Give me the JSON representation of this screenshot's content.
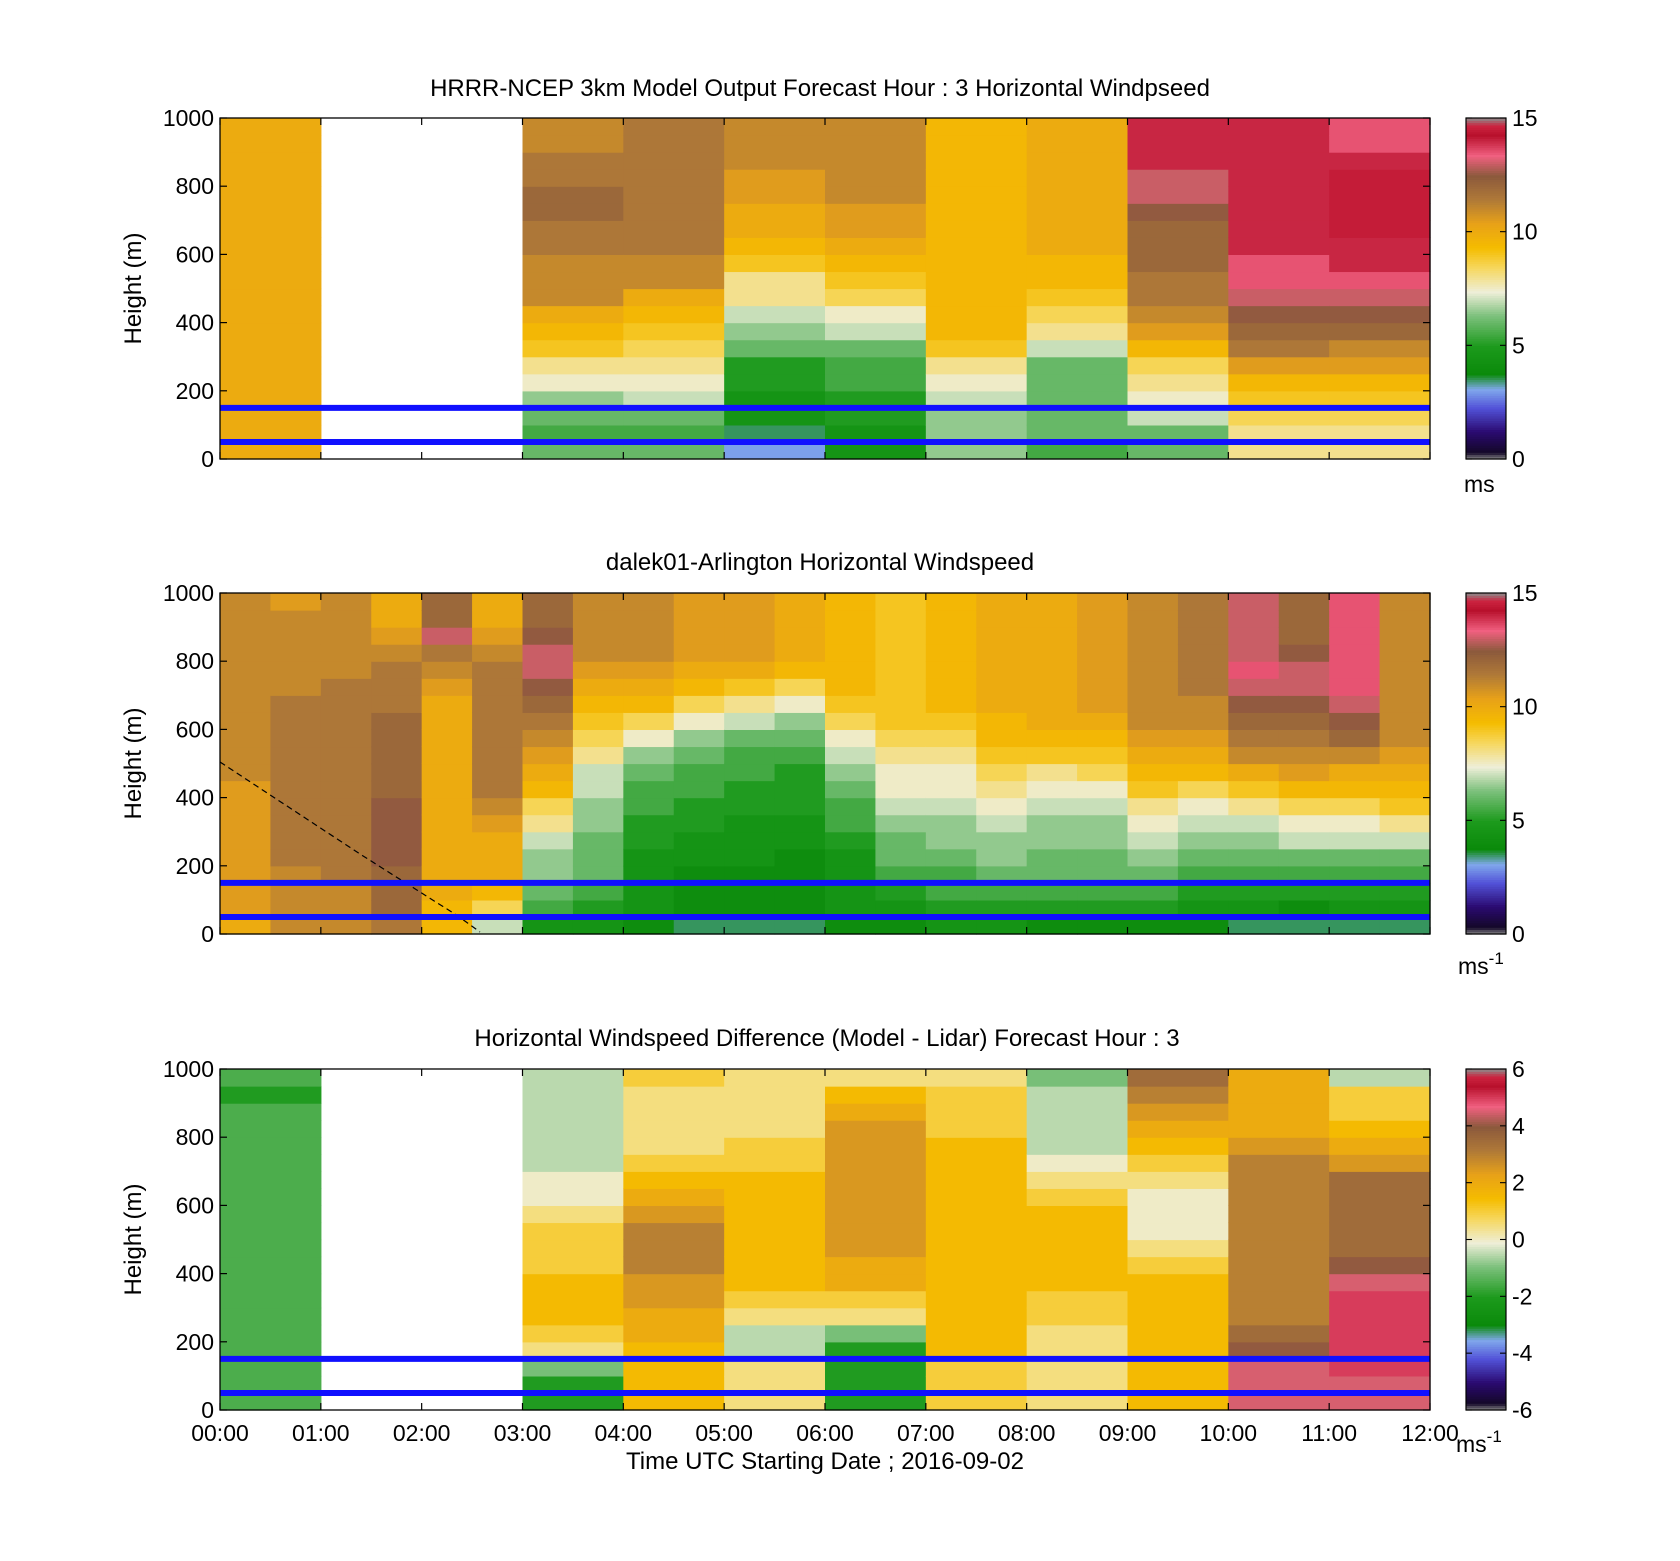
{
  "chart_data": [
    {
      "type": "heatmap",
      "title": "HRRR-NCEP 3km Model Output   Forecast Hour : 3 Horizontal Windpseed",
      "ylabel": "Height (m)",
      "ylim": [
        0,
        1000
      ],
      "yticks": [
        "0",
        "200",
        "400",
        "600",
        "800",
        "1000"
      ],
      "colorbar": {
        "ticks": [
          "0",
          "5",
          "10",
          "15"
        ],
        "unit": "ms",
        "unit_sup": "",
        "range": [
          0,
          15
        ]
      },
      "x_columns": [
        "00:00",
        "01:00",
        "02:00",
        "03:00",
        "04:00",
        "05:00",
        "06:00",
        "07:00",
        "08:00",
        "09:00",
        "10:00",
        "11:00"
      ],
      "heights": [
        25,
        75,
        125,
        175,
        225,
        275,
        325,
        375,
        425,
        475,
        525,
        575,
        625,
        675,
        725,
        775,
        825,
        875,
        925,
        975
      ],
      "values": [
        [
          10,
          10,
          10,
          10,
          10,
          10,
          10,
          10,
          10,
          10,
          10,
          10,
          10,
          10,
          10,
          10,
          10,
          10,
          10,
          10
        ],
        null,
        null,
        [
          6,
          5.5,
          6,
          6.5,
          7.5,
          8,
          9,
          9.5,
          10,
          11,
          11,
          11,
          11.5,
          11.5,
          12,
          12,
          11.5,
          11.5,
          11,
          11
        ],
        [
          6,
          5.5,
          6,
          7,
          7.5,
          8,
          8.5,
          9,
          9.5,
          10,
          11,
          11,
          11.5,
          11.5,
          11.5,
          11.5,
          11.5,
          11.5,
          11.5,
          11.5
        ],
        [
          3,
          3.5,
          4.5,
          4.5,
          5,
          5,
          6,
          6.5,
          7,
          8,
          8,
          9,
          9.5,
          10,
          10,
          10.5,
          10.5,
          11,
          11,
          11
        ],
        [
          4.5,
          4.5,
          5,
          5,
          5.5,
          5.5,
          6,
          7,
          7.5,
          8.5,
          9,
          9.5,
          10,
          10.5,
          10.5,
          11,
          11,
          11,
          11,
          11
        ],
        [
          6.5,
          6.5,
          6.5,
          7,
          7.5,
          8,
          9,
          9.5,
          9.5,
          9.5,
          9.5,
          9.5,
          9.5,
          9.5,
          9.5,
          9.5,
          9.5,
          9.5,
          9.5,
          9.5
        ],
        [
          5.5,
          6,
          6,
          6,
          6,
          6,
          7,
          8,
          8.5,
          9,
          9.5,
          9.5,
          10,
          10,
          10,
          10,
          10,
          10,
          10,
          10
        ],
        [
          6,
          6,
          7,
          7.5,
          8,
          8.5,
          9.5,
          10.5,
          11,
          11.5,
          11.5,
          12,
          12,
          12,
          12.5,
          13,
          13,
          14,
          14,
          14
        ],
        [
          8,
          8,
          8.5,
          9,
          9.5,
          10.5,
          11.5,
          12,
          12.5,
          13,
          13.5,
          13.5,
          14,
          14,
          14,
          14,
          14,
          14,
          14,
          14
        ],
        [
          8,
          8,
          8.5,
          9,
          9.5,
          10.5,
          11,
          12,
          12.5,
          13,
          13.5,
          14,
          14,
          14.5,
          14.5,
          14.5,
          14.5,
          14,
          13.5,
          13.5
        ]
      ]
    },
    {
      "type": "heatmap",
      "title": "dalek01-Arlington  Horizontal Windspeed",
      "ylabel": "Height (m)",
      "ylim": [
        0,
        1000
      ],
      "yticks": [
        "0",
        "200",
        "400",
        "600",
        "800",
        "1000"
      ],
      "colorbar": {
        "ticks": [
          "0",
          "5",
          "10",
          "15"
        ],
        "unit": "ms",
        "unit_sup": "-1",
        "range": [
          0,
          15
        ]
      },
      "profile_times": [
        0.25,
        0.75,
        1.25,
        1.75,
        2.25,
        2.75,
        3.25,
        3.75,
        4.25,
        4.75,
        5.25,
        5.75,
        6.25,
        6.75,
        7.25,
        7.75,
        8.25,
        8.75,
        9.25,
        9.75,
        10.25,
        10.75,
        11.25,
        11.75
      ],
      "heights": [
        25,
        75,
        125,
        175,
        225,
        275,
        325,
        375,
        425,
        475,
        525,
        575,
        625,
        675,
        725,
        775,
        825,
        875,
        925,
        975
      ],
      "values": [
        [
          10,
          10.5,
          10.5,
          10.5,
          10.5,
          10.5,
          10.5,
          10.5,
          10.5,
          11,
          11,
          11,
          11,
          11,
          11,
          11,
          11,
          11,
          11,
          11
        ],
        [
          11,
          11,
          11,
          11,
          11.5,
          11.5,
          11.5,
          11.5,
          11.5,
          11.5,
          11.5,
          11.5,
          11.5,
          11.5,
          11,
          11,
          11,
          11,
          11,
          10.5
        ],
        [
          11,
          11,
          11,
          11.5,
          11.5,
          11.5,
          11.5,
          11.5,
          11.5,
          11.5,
          11.5,
          11.5,
          11.5,
          11.5,
          11.5,
          11,
          11,
          11,
          11,
          11
        ],
        [
          11.5,
          12,
          12,
          12,
          12.5,
          12.5,
          12.5,
          12.5,
          12,
          12,
          12,
          12,
          12,
          11.5,
          11.5,
          11.5,
          11,
          10.5,
          10,
          10
        ],
        [
          9.5,
          9.5,
          10,
          10,
          10,
          10,
          10,
          10,
          10,
          10,
          10,
          10,
          10,
          10,
          10.5,
          11,
          11.5,
          13,
          12,
          12
        ],
        [
          7,
          8.5,
          9.5,
          10,
          10,
          10,
          10.5,
          11,
          11.5,
          11.5,
          11.5,
          11.5,
          11.5,
          11.5,
          11.5,
          11.5,
          11,
          10.5,
          10,
          10
        ],
        [
          4.5,
          5.5,
          6,
          6.5,
          6.5,
          7,
          8,
          8.5,
          9.5,
          10,
          10.5,
          11,
          11.5,
          12,
          12.5,
          13,
          13,
          12.5,
          12,
          12
        ],
        [
          4.5,
          5,
          5.5,
          6,
          6,
          6,
          6.5,
          6.5,
          7,
          7,
          8,
          8.5,
          9,
          9.5,
          10,
          10.5,
          11,
          11,
          11,
          11
        ],
        [
          4,
          4.5,
          4.5,
          4.5,
          4.5,
          5,
          5,
          5.5,
          5.5,
          6,
          6.5,
          7.5,
          8.5,
          9.5,
          10,
          10.5,
          11,
          11,
          11,
          11
        ],
        [
          3.5,
          4,
          4,
          4,
          4.5,
          4.5,
          5,
          5,
          5.5,
          5.5,
          6,
          6.5,
          7.5,
          8.5,
          9.5,
          10,
          10.5,
          10.5,
          10.5,
          10.5
        ],
        [
          3.5,
          4,
          4,
          4,
          4.5,
          4.5,
          4.5,
          5,
          5,
          5.5,
          5.5,
          6,
          7,
          8,
          9,
          10,
          10.5,
          10.5,
          10.5,
          10.5
        ],
        [
          3.5,
          4,
          4,
          4,
          4,
          4.5,
          4.5,
          5,
          5,
          5,
          5.5,
          6,
          6.5,
          7.5,
          8.5,
          9.5,
          10,
          10,
          10,
          10
        ],
        [
          4,
          4.5,
          4.5,
          4.5,
          4.5,
          5,
          5.5,
          5.5,
          6,
          6.5,
          7,
          7.5,
          8.5,
          9,
          9.5,
          9.5,
          9.5,
          9.5,
          9.5,
          9.5
        ],
        [
          4,
          4.5,
          5,
          5.5,
          6,
          6,
          6.5,
          7,
          7.5,
          7.5,
          8,
          8.5,
          9,
          9,
          9,
          9,
          9,
          9,
          9,
          9
        ],
        [
          4.5,
          5,
          5.5,
          5.5,
          6,
          6.5,
          6.5,
          7,
          7.5,
          7.5,
          8,
          8.5,
          9,
          9.5,
          9.5,
          9.5,
          9.5,
          9.5,
          9.5,
          9.5
        ],
        [
          4.5,
          5,
          5.5,
          6,
          6.5,
          6.5,
          7,
          7.5,
          8,
          8.5,
          9,
          9.5,
          9.5,
          10,
          10,
          10,
          10,
          10,
          10,
          10
        ],
        [
          4,
          5,
          5.5,
          6,
          6,
          6.5,
          6.5,
          7,
          7.5,
          8,
          9,
          9.5,
          10,
          10,
          10,
          10,
          10,
          10,
          10,
          10
        ],
        [
          4,
          5,
          5.5,
          6,
          6,
          6.5,
          6.5,
          7,
          7.5,
          8.5,
          9,
          9.5,
          10,
          10.5,
          10.5,
          10.5,
          10.5,
          10.5,
          10.5,
          10.5
        ],
        [
          4,
          5,
          5.5,
          6,
          6.5,
          7,
          7.5,
          8,
          9,
          9.5,
          10,
          10.5,
          11,
          11,
          11,
          11,
          11,
          11,
          11,
          11
        ],
        [
          4,
          4.5,
          5,
          5.5,
          6,
          6.5,
          7,
          7.5,
          8.5,
          9.5,
          10,
          10.5,
          11,
          11,
          11.5,
          11.5,
          11.5,
          11.5,
          11.5,
          11.5
        ],
        [
          3.5,
          4.5,
          5,
          5.5,
          6,
          6.5,
          7,
          8,
          9,
          10,
          11,
          11.5,
          12,
          12.5,
          13,
          13.5,
          13,
          13,
          13,
          13
        ],
        [
          3.5,
          4,
          5,
          5.5,
          6,
          7,
          7.5,
          8.5,
          9.5,
          10.5,
          11,
          11.5,
          12,
          12.5,
          13,
          13,
          12.5,
          12,
          12,
          12
        ],
        [
          3.5,
          4.5,
          5,
          5.5,
          6,
          7,
          7.5,
          8.5,
          9.5,
          10,
          11,
          12,
          12.5,
          13,
          13.5,
          13.5,
          13.5,
          13.5,
          13.5,
          13.5
        ],
        [
          3.5,
          4.5,
          5,
          5.5,
          6,
          7,
          8,
          9,
          9.5,
          10,
          10.5,
          11,
          11,
          11,
          11,
          11,
          11,
          11,
          11,
          11
        ]
      ]
    },
    {
      "type": "heatmap",
      "title": "Horizontal Windspeed Difference (Model - Lidar) Forecast Hour : 3",
      "xlabel": "Time UTC  Starting Date ; 2016-09-02",
      "ylabel": "Height (m)",
      "ylim": [
        0,
        1000
      ],
      "yticks": [
        "0",
        "200",
        "400",
        "600",
        "800",
        "1000"
      ],
      "xticks": [
        "00:00",
        "01:00",
        "02:00",
        "03:00",
        "04:00",
        "05:00",
        "06:00",
        "07:00",
        "08:00",
        "09:00",
        "10:00",
        "11:00",
        "12:00"
      ],
      "colorbar": {
        "ticks": [
          "-6",
          "-4",
          "-2",
          "0",
          "2",
          "4",
          "6"
        ],
        "unit": "ms",
        "unit_sup": "-1",
        "range": [
          -6,
          6
        ]
      },
      "x_columns": [
        "00:00",
        "01:00",
        "02:00",
        "03:00",
        "04:00",
        "05:00",
        "06:00",
        "07:00",
        "08:00",
        "09:00",
        "10:00",
        "11:00"
      ],
      "heights": [
        25,
        75,
        125,
        175,
        225,
        275,
        325,
        375,
        425,
        475,
        525,
        575,
        625,
        675,
        725,
        775,
        825,
        875,
        925,
        975
      ],
      "values": [
        [
          -1.5,
          -1.5,
          -1.5,
          -1.5,
          -1.5,
          -1.5,
          -1.5,
          -1.5,
          -1.5,
          -1.5,
          -1.5,
          -1.5,
          -1.5,
          -1.5,
          -1.5,
          -1.5,
          -1.5,
          -1.5,
          -2,
          -1.5
        ],
        null,
        null,
        [
          -2,
          -2,
          -1,
          0.5,
          1,
          1.5,
          1.5,
          1.5,
          1,
          1,
          1,
          0.5,
          0,
          0,
          -0.5,
          -0.5,
          -0.5,
          -0.5,
          -0.5,
          -0.5
        ],
        [
          1.5,
          1.5,
          1.5,
          1.5,
          2,
          2,
          2.5,
          2.5,
          3,
          3,
          3,
          2.5,
          2,
          1.5,
          1,
          0.5,
          0.5,
          0.5,
          0.5,
          1
        ],
        [
          0.5,
          0.5,
          0.5,
          -0.5,
          -0.5,
          0.5,
          1,
          1.5,
          1.5,
          1.5,
          1.5,
          1.5,
          1.5,
          1.5,
          1,
          1,
          0.5,
          0.5,
          0.5,
          0.5
        ],
        [
          -2,
          -2,
          -2,
          -2,
          -1,
          0.5,
          1,
          2,
          2,
          2.5,
          2.5,
          2.5,
          2.5,
          2.5,
          2.5,
          2.5,
          2.5,
          2,
          1.5,
          0.5
        ],
        [
          1,
          1,
          1,
          1.5,
          1.5,
          1.5,
          1.5,
          1.5,
          1.5,
          1.5,
          1.5,
          1.5,
          1.5,
          1.5,
          1.5,
          1.5,
          1,
          1,
          1,
          0.5
        ],
        [
          0.5,
          0.5,
          0.5,
          0.5,
          0.5,
          1,
          1,
          1.5,
          1.5,
          1.5,
          1.5,
          1.5,
          1,
          0.5,
          0,
          -0.5,
          -0.5,
          -0.5,
          -0.5,
          -1
        ],
        [
          1.5,
          1.5,
          1.5,
          1.5,
          1.5,
          1.5,
          1.5,
          1.5,
          1,
          0.5,
          0,
          0,
          0,
          0.5,
          1,
          1.5,
          2,
          2.5,
          3,
          3.5
        ],
        [
          4.5,
          4.5,
          4.5,
          4,
          3.5,
          3,
          3,
          3,
          3,
          3,
          3,
          3,
          3,
          3,
          3,
          2.5,
          2,
          2,
          2,
          2
        ],
        [
          4.5,
          4.5,
          5,
          5,
          5,
          5,
          5,
          4.5,
          4,
          3.5,
          3.5,
          3.5,
          3.5,
          3.5,
          2.5,
          2,
          1.5,
          1,
          1,
          -0.5
        ]
      ]
    }
  ],
  "blue_line_heights": [
    50,
    150
  ],
  "colors": {
    "reference_lines": "#1010ff",
    "missing": "#ffffff",
    "colormap_end": "#8c8c8c"
  }
}
